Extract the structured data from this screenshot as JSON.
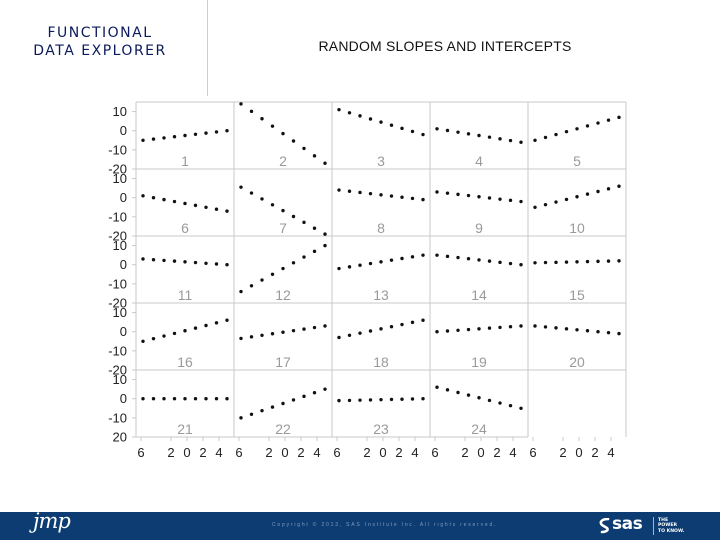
{
  "header": {
    "title_line1": "FUNCTIONAL",
    "title_line2": "DATA EXPLORER",
    "main_title": "RANDOM SLOPES AND INTERCEPTS"
  },
  "footer": {
    "jmp_logo": "jmp",
    "copyright": "Copyright © 2013, SAS Institute Inc. All rights reserved.",
    "sas_logo": "sas",
    "tagline": [
      "THE",
      "POWER",
      "TO KNOW."
    ]
  },
  "colors": {
    "footer_bg": "#0d3c72",
    "title_navy": "#0a1a5c",
    "grid": "#c8c8c8",
    "points": "#111111",
    "panel_label": "#9a9a9a",
    "axis_label": "#222222"
  },
  "chart_data": {
    "type": "scatter",
    "title": "",
    "layout": {
      "rows": 5,
      "cols": 5
    },
    "y_ticks": [
      "10",
      "0",
      "-10",
      "-20"
    ],
    "y_ticks_last_row": [
      "10",
      "0",
      "-10",
      "20"
    ],
    "x_tick_labels": [
      "6",
      "2",
      "0",
      "2",
      "4"
    ],
    "ylim": [
      -20,
      15
    ],
    "x_points_per_panel": 9,
    "xlim": [
      -6,
      4
    ],
    "panels": [
      {
        "label": "1",
        "start": -5,
        "end": 0
      },
      {
        "label": "2",
        "start": 14,
        "end": -17
      },
      {
        "label": "3",
        "start": 11,
        "end": -2
      },
      {
        "label": "4",
        "start": 1,
        "end": -6
      },
      {
        "label": "5",
        "start": -5,
        "end": 7
      },
      {
        "label": "6",
        "start": 1,
        "end": -7
      },
      {
        "label": "7",
        "start": 5.5,
        "end": -19
      },
      {
        "label": "8",
        "start": 4,
        "end": -1
      },
      {
        "label": "9",
        "start": 3,
        "end": -2
      },
      {
        "label": "10",
        "start": -5,
        "end": 6
      },
      {
        "label": "11",
        "start": 3,
        "end": 0
      },
      {
        "label": "12",
        "start": -14,
        "end": 10
      },
      {
        "label": "13",
        "start": -2,
        "end": 5
      },
      {
        "label": "14",
        "start": 5,
        "end": 0
      },
      {
        "label": "15",
        "start": 1,
        "end": 2
      },
      {
        "label": "16",
        "start": -5,
        "end": 6
      },
      {
        "label": "17",
        "start": -3.5,
        "end": 3
      },
      {
        "label": "18",
        "start": -3,
        "end": 6
      },
      {
        "label": "19",
        "start": 0,
        "end": 3
      },
      {
        "label": "20",
        "start": 3,
        "end": -1
      },
      {
        "label": "21",
        "start": 0,
        "end": 0
      },
      {
        "label": "22",
        "start": -10,
        "end": 5
      },
      {
        "label": "23",
        "start": -1,
        "end": 0
      },
      {
        "label": "24",
        "start": 6,
        "end": -5
      }
    ]
  }
}
